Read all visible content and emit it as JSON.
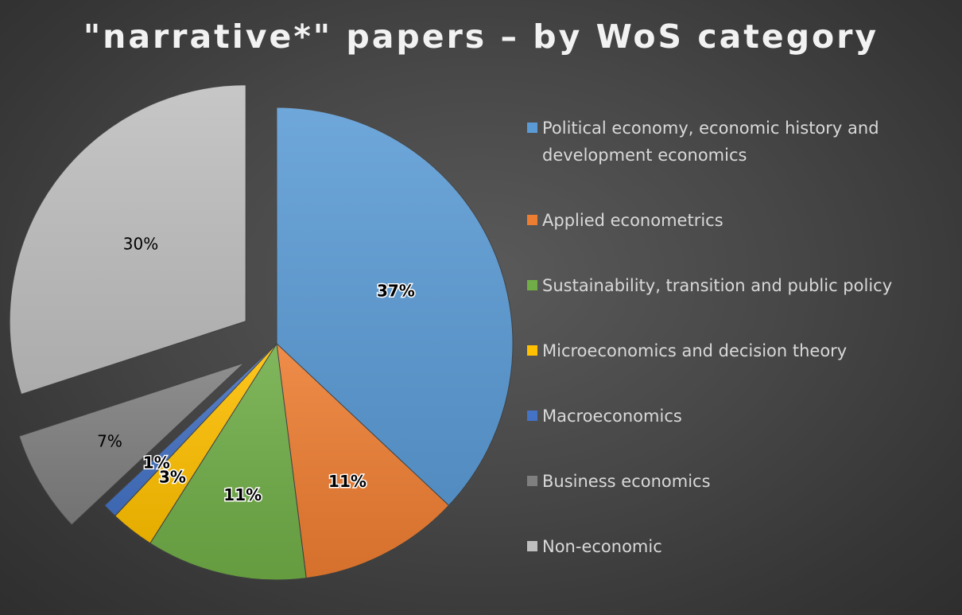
{
  "chart_data": {
    "type": "pie",
    "title": "\"narrative*\" papers – by WoS category",
    "legend_position": "right",
    "slices": [
      {
        "label": "Political economy, economic history and development economics",
        "value": 37,
        "display": "37%",
        "color": "#5b9bd5",
        "exploded": false,
        "label_bold": true
      },
      {
        "label": "Applied econometrics",
        "value": 11,
        "display": "11%",
        "color": "#ed7d31",
        "exploded": false,
        "label_bold": true
      },
      {
        "label": "Sustainability, transition and public policy",
        "value": 11,
        "display": "11%",
        "color": "#70ad47",
        "exploded": false,
        "label_bold": true
      },
      {
        "label": "Microeconomics and decision theory",
        "value": 3,
        "display": "3%",
        "color": "#ffc000",
        "exploded": false,
        "label_bold": true
      },
      {
        "label": "Macroeconomics",
        "value": 1,
        "display": "1%",
        "color": "#4472c4",
        "exploded": false,
        "label_bold": true
      },
      {
        "label": "Business economics",
        "value": 7,
        "display": "7%",
        "color": "#7f7f7f",
        "exploded": true,
        "label_bold": false
      },
      {
        "label": "Non-economic",
        "value": 30,
        "display": "30%",
        "color": "#bfbfbf",
        "exploded": true,
        "label_bold": false
      }
    ]
  }
}
